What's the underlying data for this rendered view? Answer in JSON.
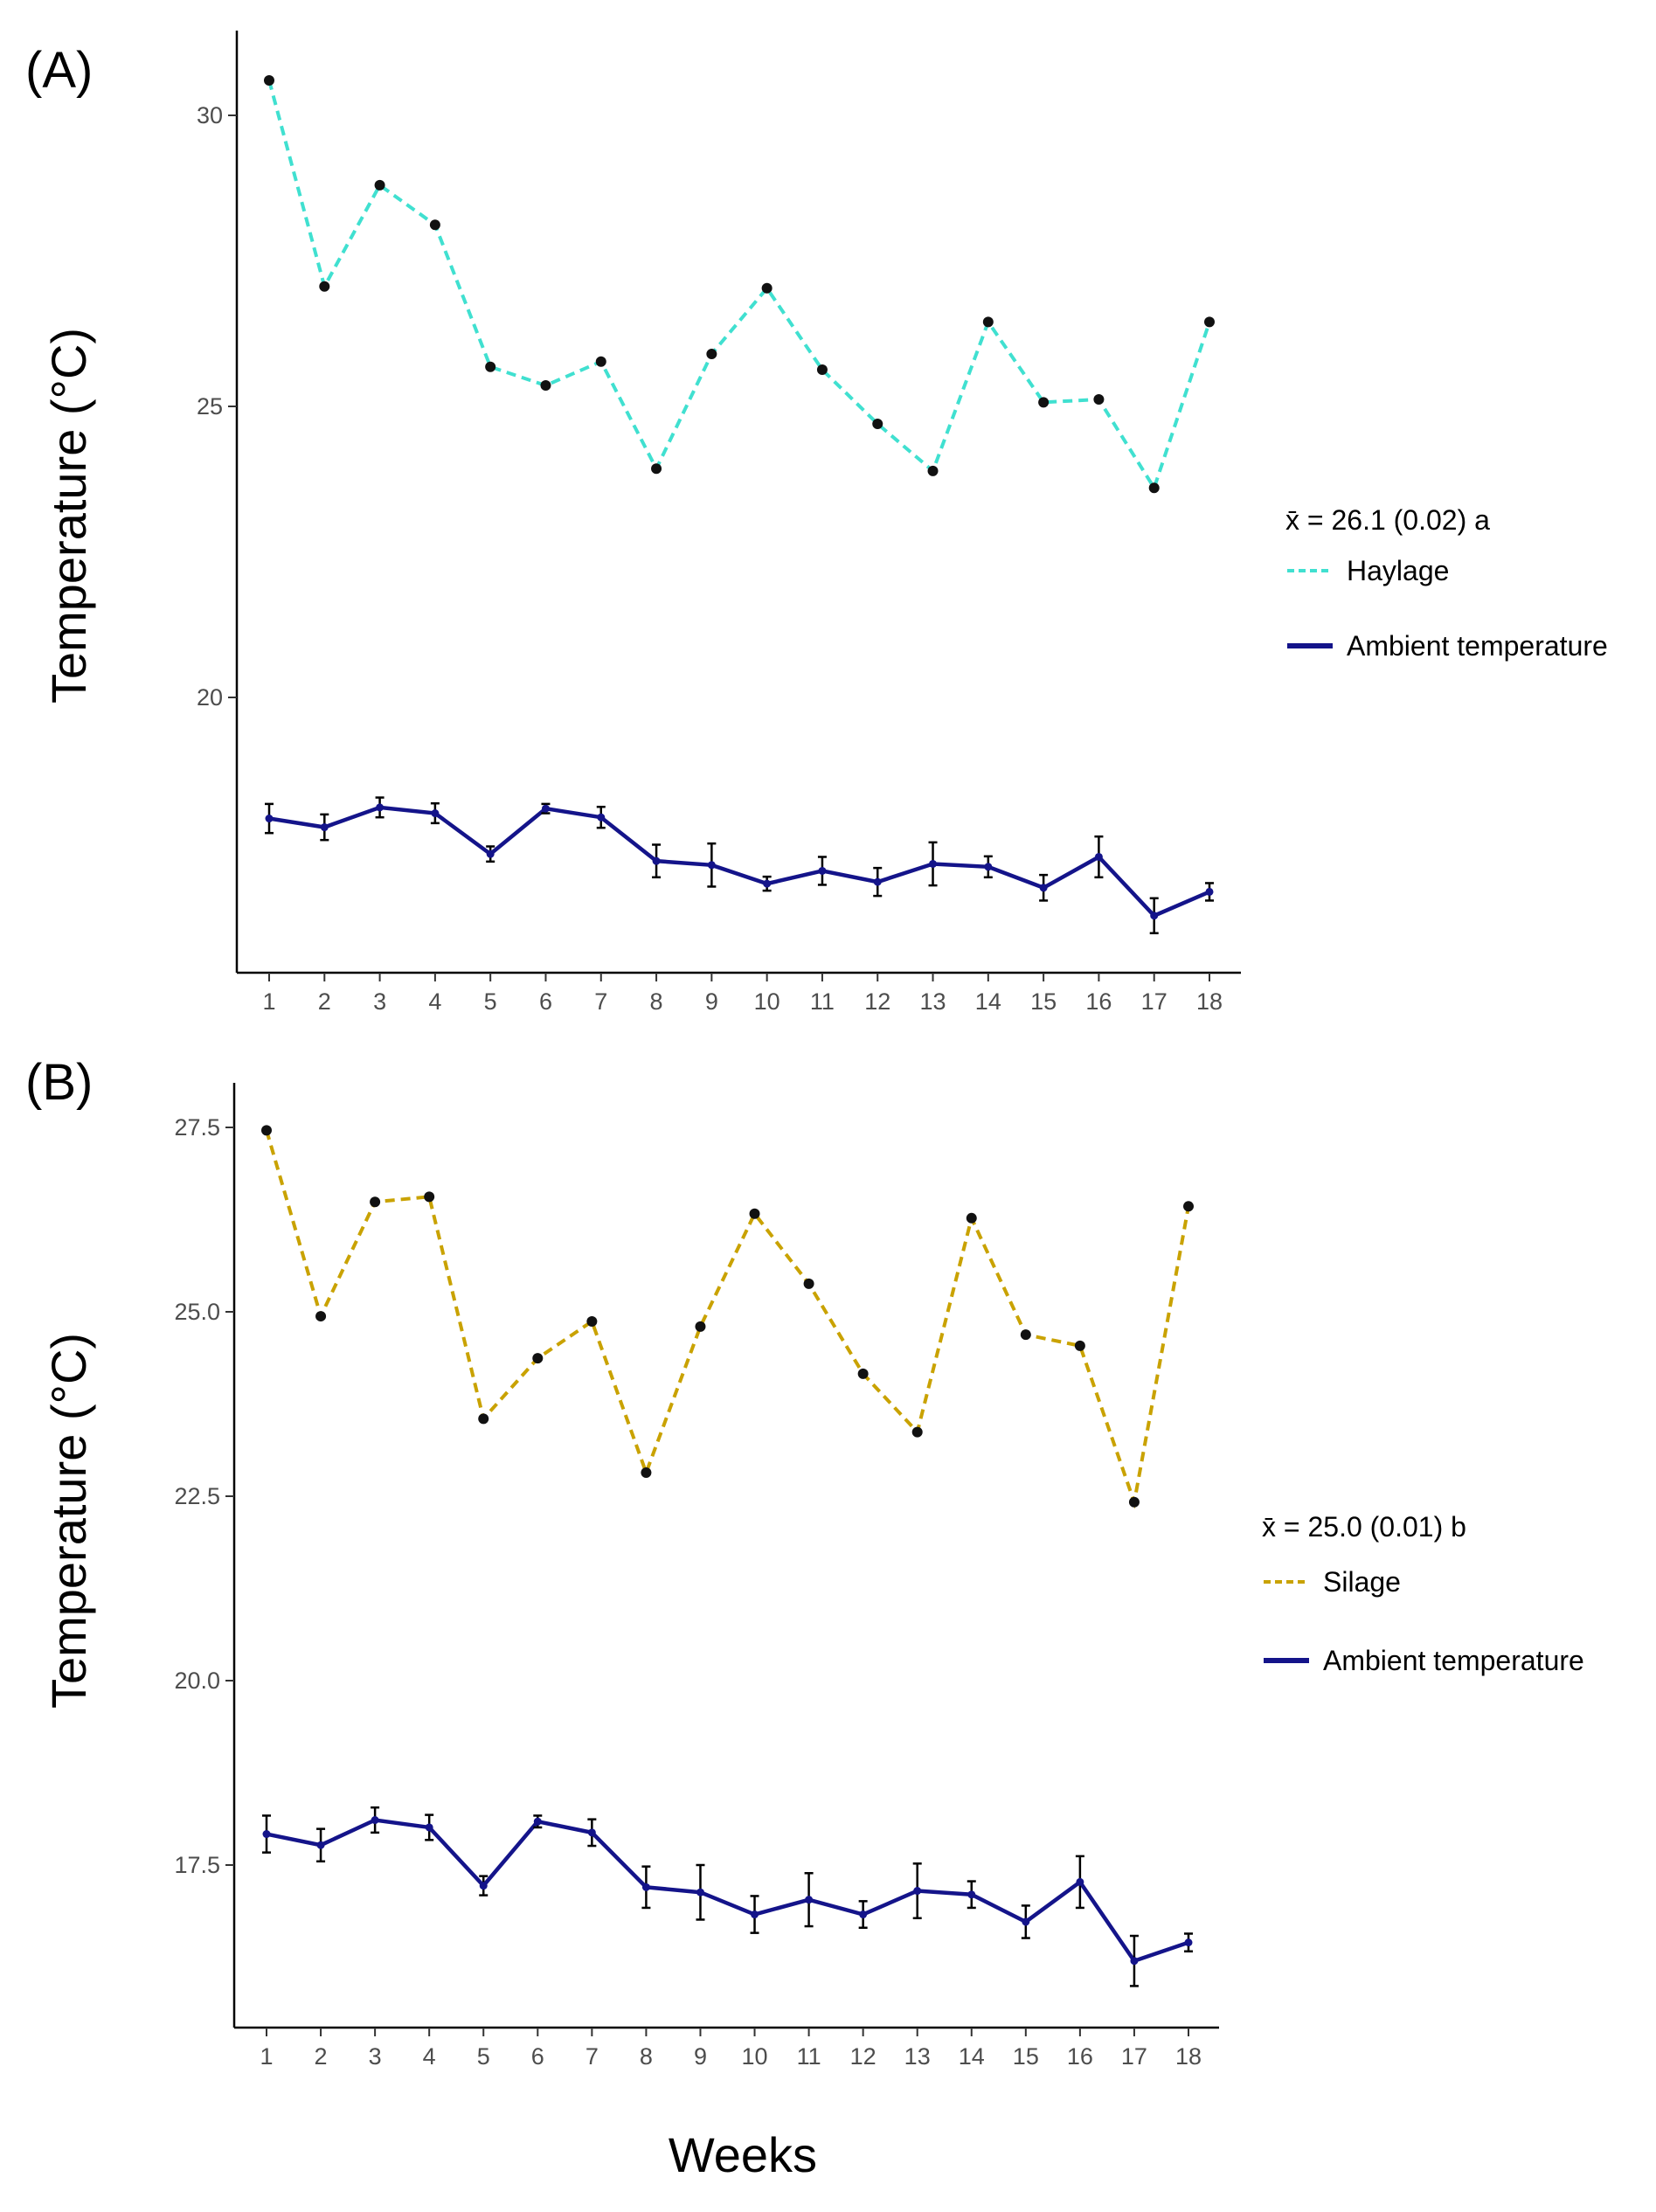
{
  "chart_data": [
    {
      "type": "line",
      "panel_label": "(A)",
      "xlabel": "Weeks",
      "ylabel": "Temperature (°C)",
      "x": [
        1,
        2,
        3,
        4,
        5,
        6,
        7,
        8,
        9,
        10,
        11,
        12,
        13,
        14,
        15,
        16,
        17,
        18
      ],
      "x_tick_labels": [
        "1",
        "2",
        "3",
        "4",
        "5",
        "6",
        "7",
        "8",
        "9",
        "10",
        "11",
        "12",
        "13",
        "14",
        "15",
        "16",
        "17",
        "18"
      ],
      "y_ticks": [
        20,
        25,
        30
      ],
      "y_tick_labels": [
        "20",
        "25",
        "30"
      ],
      "ylim": [
        15.2,
        31.2
      ],
      "grid": false,
      "legend_position": "right",
      "legend_title": "x̄ = 26.1 (0.02) a",
      "series": [
        {
          "name": "Haylage",
          "style": "dashed",
          "color": "#40E0D0",
          "values": [
            30.6,
            27.06,
            28.8,
            28.12,
            25.68,
            25.36,
            25.77,
            23.93,
            25.9,
            27.03,
            25.63,
            24.7,
            23.89,
            26.45,
            25.07,
            25.12,
            23.6,
            26.45
          ]
        },
        {
          "name": "Ambient temperature",
          "style": "solid",
          "color": "#14148a",
          "values": [
            17.92,
            17.77,
            18.11,
            18.01,
            17.31,
            18.09,
            17.94,
            17.19,
            17.12,
            16.8,
            17.02,
            16.83,
            17.14,
            17.09,
            16.73,
            17.26,
            16.25,
            16.66
          ],
          "error": [
            0.25,
            0.22,
            0.17,
            0.17,
            0.13,
            0.08,
            0.18,
            0.28,
            0.37,
            0.12,
            0.24,
            0.24,
            0.37,
            0.18,
            0.22,
            0.35,
            0.3,
            0.15
          ]
        }
      ]
    },
    {
      "type": "line",
      "panel_label": "(B)",
      "xlabel": "Weeks",
      "ylabel": "Temperature (°C)",
      "x": [
        1,
        2,
        3,
        4,
        5,
        6,
        7,
        8,
        9,
        10,
        11,
        12,
        13,
        14,
        15,
        16,
        17,
        18
      ],
      "x_tick_labels": [
        "1",
        "2",
        "3",
        "4",
        "5",
        "6",
        "7",
        "8",
        "9",
        "10",
        "11",
        "12",
        "13",
        "14",
        "15",
        "16",
        "17",
        "18"
      ],
      "y_ticks": [
        17.5,
        20.0,
        22.5,
        25.0,
        27.5
      ],
      "y_tick_labels": [
        "17.5",
        "20.0",
        "22.5",
        "25.0",
        "27.5"
      ],
      "ylim": [
        15.3,
        28.1
      ],
      "grid": false,
      "legend_position": "right",
      "legend_title": "x̄ = 25.0 (0.01) b",
      "series": [
        {
          "name": "Silage",
          "style": "dashed",
          "color": "#C9A200",
          "values": [
            27.46,
            24.94,
            26.49,
            26.56,
            23.55,
            24.37,
            24.87,
            22.82,
            24.8,
            26.33,
            25.38,
            24.16,
            23.37,
            26.27,
            24.69,
            24.54,
            22.42,
            26.43
          ]
        },
        {
          "name": "Ambient temperature",
          "style": "solid",
          "color": "#14148a",
          "values": [
            17.92,
            17.77,
            18.11,
            18.01,
            17.22,
            18.09,
            17.94,
            17.2,
            17.13,
            16.83,
            17.03,
            16.83,
            17.15,
            17.1,
            16.73,
            17.27,
            16.2,
            16.45
          ],
          "error": [
            0.25,
            0.22,
            0.17,
            0.17,
            0.13,
            0.08,
            0.18,
            0.28,
            0.37,
            0.25,
            0.36,
            0.18,
            0.37,
            0.18,
            0.22,
            0.35,
            0.34,
            0.12
          ]
        }
      ]
    }
  ]
}
